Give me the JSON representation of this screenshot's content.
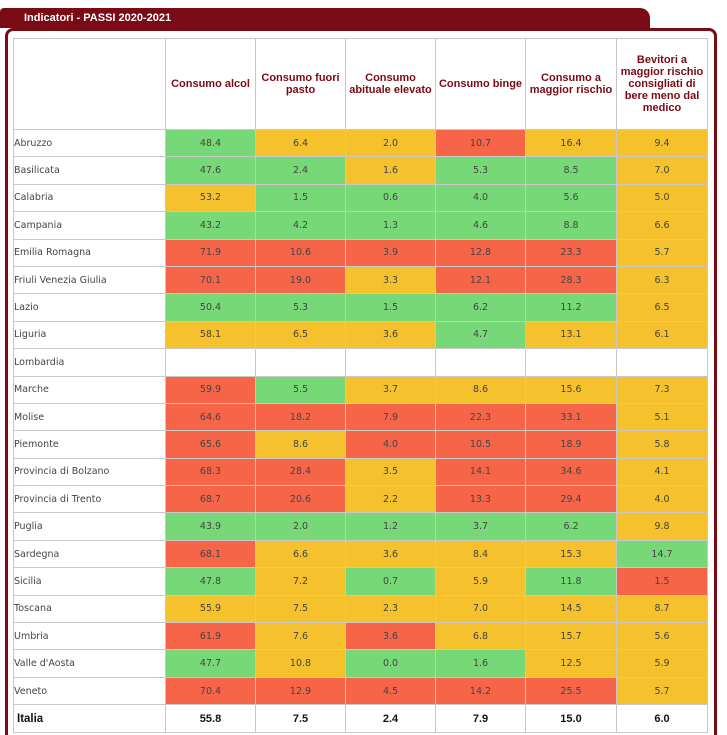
{
  "panel": {
    "title": "Indicatori - PASSI 2020-2021"
  },
  "colors": {
    "green": "#77d877",
    "yellow": "#f5c12c",
    "red": "#f66548",
    "frame": "#7a0a14",
    "header_text": "#7a0a14"
  },
  "table": {
    "headers": [
      "",
      "Consumo alcol",
      "Consumo fuori pasto",
      "Consumo abituale elevato",
      "Consumo binge",
      "Consumo a maggior rischio",
      "Bevitori a maggior rischio consigliati di bere meno dal medico"
    ],
    "rows": [
      {
        "region": "Abruzzo",
        "cells": [
          {
            "v": "48.4",
            "c": "green"
          },
          {
            "v": "6.4",
            "c": "yellow"
          },
          {
            "v": "2.0",
            "c": "yellow"
          },
          {
            "v": "10.7",
            "c": "red"
          },
          {
            "v": "16.4",
            "c": "yellow"
          },
          {
            "v": "9.4",
            "c": "yellow"
          }
        ]
      },
      {
        "region": "Basilicata",
        "cells": [
          {
            "v": "47.6",
            "c": "green"
          },
          {
            "v": "2.4",
            "c": "green"
          },
          {
            "v": "1.6",
            "c": "yellow"
          },
          {
            "v": "5.3",
            "c": "green"
          },
          {
            "v": "8.5",
            "c": "green"
          },
          {
            "v": "7.0",
            "c": "yellow"
          }
        ]
      },
      {
        "region": "Calabria",
        "cells": [
          {
            "v": "53.2",
            "c": "yellow"
          },
          {
            "v": "1.5",
            "c": "green"
          },
          {
            "v": "0.6",
            "c": "green"
          },
          {
            "v": "4.0",
            "c": "green"
          },
          {
            "v": "5.6",
            "c": "green"
          },
          {
            "v": "5.0",
            "c": "yellow"
          }
        ]
      },
      {
        "region": "Campania",
        "cells": [
          {
            "v": "43.2",
            "c": "green"
          },
          {
            "v": "4.2",
            "c": "green"
          },
          {
            "v": "1.3",
            "c": "green"
          },
          {
            "v": "4.6",
            "c": "green"
          },
          {
            "v": "8.8",
            "c": "green"
          },
          {
            "v": "6.6",
            "c": "yellow"
          }
        ]
      },
      {
        "region": "Emilia Romagna",
        "cells": [
          {
            "v": "71.9",
            "c": "red"
          },
          {
            "v": "10.6",
            "c": "red"
          },
          {
            "v": "3.9",
            "c": "red"
          },
          {
            "v": "12.8",
            "c": "red"
          },
          {
            "v": "23.3",
            "c": "red"
          },
          {
            "v": "5.7",
            "c": "yellow"
          }
        ]
      },
      {
        "region": "Friuli Venezia Giulia",
        "cells": [
          {
            "v": "70.1",
            "c": "red"
          },
          {
            "v": "19.0",
            "c": "red"
          },
          {
            "v": "3.3",
            "c": "yellow"
          },
          {
            "v": "12.1",
            "c": "red"
          },
          {
            "v": "28.3",
            "c": "red"
          },
          {
            "v": "6.3",
            "c": "yellow"
          }
        ]
      },
      {
        "region": "Lazio",
        "cells": [
          {
            "v": "50.4",
            "c": "green"
          },
          {
            "v": "5.3",
            "c": "green"
          },
          {
            "v": "1.5",
            "c": "green"
          },
          {
            "v": "6.2",
            "c": "green"
          },
          {
            "v": "11.2",
            "c": "green"
          },
          {
            "v": "6.5",
            "c": "yellow"
          }
        ]
      },
      {
        "region": "Liguria",
        "cells": [
          {
            "v": "58.1",
            "c": "yellow"
          },
          {
            "v": "6.5",
            "c": "yellow"
          },
          {
            "v": "3.6",
            "c": "yellow"
          },
          {
            "v": "4.7",
            "c": "green"
          },
          {
            "v": "13.1",
            "c": "yellow"
          },
          {
            "v": "6.1",
            "c": "yellow"
          }
        ]
      },
      {
        "region": "Lombardia",
        "cells": [
          {
            "v": "",
            "c": "white"
          },
          {
            "v": "",
            "c": "white"
          },
          {
            "v": "",
            "c": "white"
          },
          {
            "v": "",
            "c": "white"
          },
          {
            "v": "",
            "c": "white"
          },
          {
            "v": "",
            "c": "white"
          }
        ]
      },
      {
        "region": "Marche",
        "cells": [
          {
            "v": "59.9",
            "c": "red"
          },
          {
            "v": "5.5",
            "c": "green"
          },
          {
            "v": "3.7",
            "c": "yellow"
          },
          {
            "v": "8.6",
            "c": "yellow"
          },
          {
            "v": "15.6",
            "c": "yellow"
          },
          {
            "v": "7.3",
            "c": "yellow"
          }
        ]
      },
      {
        "region": "Molise",
        "cells": [
          {
            "v": "64.6",
            "c": "red"
          },
          {
            "v": "18.2",
            "c": "red"
          },
          {
            "v": "7.9",
            "c": "red"
          },
          {
            "v": "22.3",
            "c": "red"
          },
          {
            "v": "33.1",
            "c": "red"
          },
          {
            "v": "5.1",
            "c": "yellow"
          }
        ]
      },
      {
        "region": "Piemonte",
        "cells": [
          {
            "v": "65.6",
            "c": "red"
          },
          {
            "v": "8.6",
            "c": "yellow"
          },
          {
            "v": "4.0",
            "c": "red"
          },
          {
            "v": "10.5",
            "c": "red"
          },
          {
            "v": "18.9",
            "c": "red"
          },
          {
            "v": "5.8",
            "c": "yellow"
          }
        ]
      },
      {
        "region": "Provincia di Bolzano",
        "cells": [
          {
            "v": "68.3",
            "c": "red"
          },
          {
            "v": "28.4",
            "c": "red"
          },
          {
            "v": "3.5",
            "c": "yellow"
          },
          {
            "v": "14.1",
            "c": "red"
          },
          {
            "v": "34.6",
            "c": "red"
          },
          {
            "v": "4.1",
            "c": "yellow"
          }
        ]
      },
      {
        "region": "Provincia di Trento",
        "cells": [
          {
            "v": "68.7",
            "c": "red"
          },
          {
            "v": "20.6",
            "c": "red"
          },
          {
            "v": "2.2",
            "c": "yellow"
          },
          {
            "v": "13.3",
            "c": "red"
          },
          {
            "v": "29.4",
            "c": "red"
          },
          {
            "v": "4.0",
            "c": "yellow"
          }
        ]
      },
      {
        "region": "Puglia",
        "cells": [
          {
            "v": "43.9",
            "c": "green"
          },
          {
            "v": "2.0",
            "c": "green"
          },
          {
            "v": "1.2",
            "c": "green"
          },
          {
            "v": "3.7",
            "c": "green"
          },
          {
            "v": "6.2",
            "c": "green"
          },
          {
            "v": "9.8",
            "c": "yellow"
          }
        ]
      },
      {
        "region": "Sardegna",
        "cells": [
          {
            "v": "68.1",
            "c": "red"
          },
          {
            "v": "6.6",
            "c": "yellow"
          },
          {
            "v": "3.6",
            "c": "yellow"
          },
          {
            "v": "8.4",
            "c": "yellow"
          },
          {
            "v": "15.3",
            "c": "yellow"
          },
          {
            "v": "14.7",
            "c": "green"
          }
        ]
      },
      {
        "region": "Sicilia",
        "cells": [
          {
            "v": "47.8",
            "c": "green"
          },
          {
            "v": "7.2",
            "c": "yellow"
          },
          {
            "v": "0.7",
            "c": "green"
          },
          {
            "v": "5.9",
            "c": "yellow"
          },
          {
            "v": "11.8",
            "c": "green"
          },
          {
            "v": "1.5",
            "c": "red"
          }
        ]
      },
      {
        "region": "Toscana",
        "cells": [
          {
            "v": "55.9",
            "c": "yellow"
          },
          {
            "v": "7.5",
            "c": "yellow"
          },
          {
            "v": "2.3",
            "c": "yellow"
          },
          {
            "v": "7.0",
            "c": "yellow"
          },
          {
            "v": "14.5",
            "c": "yellow"
          },
          {
            "v": "8.7",
            "c": "yellow"
          }
        ]
      },
      {
        "region": "Umbria",
        "cells": [
          {
            "v": "61.9",
            "c": "red"
          },
          {
            "v": "7.6",
            "c": "yellow"
          },
          {
            "v": "3.6",
            "c": "red"
          },
          {
            "v": "6.8",
            "c": "yellow"
          },
          {
            "v": "15.7",
            "c": "yellow"
          },
          {
            "v": "5.6",
            "c": "yellow"
          }
        ]
      },
      {
        "region": "Valle d'Aosta",
        "cells": [
          {
            "v": "47.7",
            "c": "green"
          },
          {
            "v": "10.8",
            "c": "yellow"
          },
          {
            "v": "0.0",
            "c": "green"
          },
          {
            "v": "1.6",
            "c": "green"
          },
          {
            "v": "12.5",
            "c": "yellow"
          },
          {
            "v": "5.9",
            "c": "yellow"
          }
        ]
      },
      {
        "region": "Veneto",
        "cells": [
          {
            "v": "70.4",
            "c": "red"
          },
          {
            "v": "12.9",
            "c": "red"
          },
          {
            "v": "4.5",
            "c": "red"
          },
          {
            "v": "14.2",
            "c": "red"
          },
          {
            "v": "25.5",
            "c": "red"
          },
          {
            "v": "5.7",
            "c": "yellow"
          }
        ]
      }
    ],
    "total": {
      "region": "Italia",
      "values": [
        "55.8",
        "7.5",
        "2.4",
        "7.9",
        "15.0",
        "6.0"
      ]
    }
  }
}
